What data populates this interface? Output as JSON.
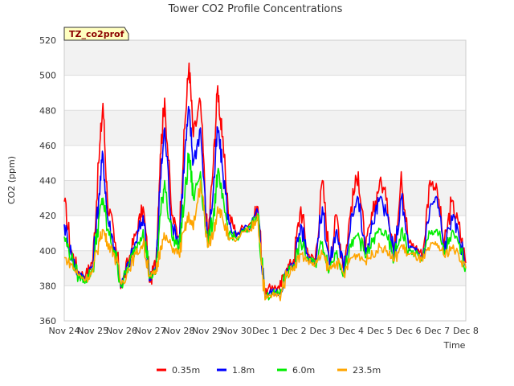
{
  "chart_data": {
    "type": "line",
    "title": "Tower CO2 Profile Concentrations",
    "xlabel": "Time",
    "ylabel": "CO2 (ppm)",
    "badge": "TZ_co2prof",
    "ylim": [
      360,
      520
    ],
    "yticks": [
      360,
      380,
      400,
      420,
      440,
      460,
      480,
      500,
      520
    ],
    "xlim": [
      0,
      14
    ],
    "xtick_labels": [
      "Nov 24",
      "Nov 25",
      "Nov 26",
      "Nov 27",
      "Nov 28",
      "Nov 29",
      "Nov 30",
      "Dec 1",
      "Dec 2",
      "Dec 3",
      "Dec 4",
      "Dec 5",
      "Dec 6",
      "Dec 7",
      "Dec 8"
    ],
    "legend_position": "bottom-center",
    "series": [
      {
        "name": "0.35m",
        "color": "#ff0000",
        "x": [
          0.0,
          0.25,
          0.5,
          0.75,
          1.0,
          1.2,
          1.35,
          1.5,
          1.75,
          2.0,
          2.25,
          2.5,
          2.75,
          3.0,
          3.2,
          3.35,
          3.5,
          3.75,
          4.0,
          4.2,
          4.35,
          4.5,
          4.75,
          5.0,
          5.2,
          5.35,
          5.5,
          5.75,
          6.0,
          6.5,
          6.75,
          7.0,
          7.25,
          7.5,
          7.75,
          8.0,
          8.25,
          8.5,
          8.75,
          9.0,
          9.25,
          9.5,
          9.75,
          10.0,
          10.25,
          10.5,
          10.75,
          11.0,
          11.25,
          11.5,
          11.75,
          12.0,
          12.25,
          12.5,
          12.75,
          13.0,
          13.25,
          13.5,
          13.75,
          14.0
        ],
        "y": [
          428,
          400,
          388,
          386,
          395,
          450,
          484,
          430,
          405,
          380,
          395,
          410,
          425,
          382,
          395,
          455,
          487,
          420,
          408,
          470,
          507,
          465,
          485,
          405,
          450,
          494,
          465,
          420,
          410,
          416,
          425,
          375,
          380,
          378,
          390,
          395,
          425,
          398,
          395,
          440,
          395,
          420,
          390,
          425,
          445,
          400,
          420,
          440,
          430,
          398,
          445,
          405,
          402,
          398,
          440,
          435,
          402,
          428,
          415,
          393
        ]
      },
      {
        "name": "1.8m",
        "color": "#0000ff",
        "x": [
          0.0,
          0.25,
          0.5,
          0.75,
          1.0,
          1.2,
          1.35,
          1.5,
          1.75,
          2.0,
          2.25,
          2.5,
          2.75,
          3.0,
          3.2,
          3.35,
          3.5,
          3.75,
          4.0,
          4.2,
          4.35,
          4.5,
          4.75,
          5.0,
          5.2,
          5.35,
          5.5,
          5.75,
          6.0,
          6.5,
          6.75,
          7.0,
          7.25,
          7.5,
          7.75,
          8.0,
          8.25,
          8.5,
          8.75,
          9.0,
          9.25,
          9.5,
          9.75,
          10.0,
          10.25,
          10.5,
          10.75,
          11.0,
          11.25,
          11.5,
          11.75,
          12.0,
          12.25,
          12.5,
          12.75,
          13.0,
          13.25,
          13.5,
          13.75,
          14.0
        ],
        "y": [
          415,
          398,
          386,
          385,
          392,
          430,
          455,
          420,
          402,
          380,
          393,
          405,
          420,
          383,
          390,
          440,
          470,
          415,
          405,
          455,
          480,
          450,
          470,
          403,
          435,
          470,
          450,
          415,
          408,
          414,
          422,
          374,
          377,
          376,
          388,
          393,
          415,
          396,
          394,
          425,
          392,
          412,
          388,
          420,
          430,
          398,
          415,
          430,
          420,
          396,
          430,
          402,
          400,
          396,
          425,
          430,
          400,
          420,
          410,
          392
        ]
      },
      {
        "name": "6.0m",
        "color": "#00ee00",
        "x": [
          0.0,
          0.25,
          0.5,
          0.75,
          1.0,
          1.2,
          1.35,
          1.5,
          1.75,
          2.0,
          2.25,
          2.5,
          2.75,
          3.0,
          3.2,
          3.35,
          3.5,
          3.75,
          4.0,
          4.2,
          4.35,
          4.5,
          4.75,
          5.0,
          5.2,
          5.35,
          5.5,
          5.75,
          6.0,
          6.5,
          6.75,
          7.0,
          7.25,
          7.5,
          7.75,
          8.0,
          8.25,
          8.5,
          8.75,
          9.0,
          9.25,
          9.5,
          9.75,
          10.0,
          10.25,
          10.5,
          10.75,
          11.0,
          11.25,
          11.5,
          11.75,
          12.0,
          12.25,
          12.5,
          12.75,
          13.0,
          13.25,
          13.5,
          13.75,
          14.0
        ],
        "y": [
          408,
          396,
          385,
          383,
          390,
          418,
          430,
          412,
          400,
          380,
          392,
          402,
          412,
          385,
          388,
          420,
          440,
          408,
          402,
          430,
          455,
          430,
          445,
          402,
          420,
          445,
          430,
          410,
          407,
          413,
          421,
          373,
          376,
          375,
          387,
          392,
          405,
          395,
          393,
          405,
          390,
          400,
          387,
          402,
          410,
          396,
          405,
          412,
          408,
          395,
          412,
          400,
          398,
          395,
          410,
          412,
          398,
          410,
          404,
          391
        ]
      },
      {
        "name": "23.5m",
        "color": "#ffa500",
        "x": [
          0.0,
          0.25,
          0.5,
          0.75,
          1.0,
          1.2,
          1.35,
          1.5,
          1.75,
          2.0,
          2.25,
          2.5,
          2.75,
          3.0,
          3.2,
          3.35,
          3.5,
          3.75,
          4.0,
          4.2,
          4.35,
          4.5,
          4.75,
          5.0,
          5.2,
          5.35,
          5.5,
          5.75,
          6.0,
          6.5,
          6.75,
          7.0,
          7.25,
          7.5,
          7.75,
          8.0,
          8.25,
          8.5,
          8.75,
          9.0,
          9.25,
          9.5,
          9.75,
          10.0,
          10.25,
          10.5,
          10.75,
          11.0,
          11.25,
          11.5,
          11.75,
          12.0,
          12.25,
          12.5,
          12.75,
          13.0,
          13.25,
          13.5,
          13.75,
          14.0
        ],
        "y": [
          396,
          392,
          386,
          384,
          388,
          405,
          412,
          405,
          398,
          381,
          390,
          398,
          404,
          386,
          387,
          402,
          408,
          402,
          398,
          412,
          420,
          412,
          440,
          402,
          410,
          425,
          420,
          406,
          406,
          412,
          420,
          372,
          375,
          374,
          386,
          391,
          398,
          394,
          392,
          398,
          389,
          394,
          386,
          396,
          398,
          394,
          398,
          402,
          400,
          394,
          403,
          398,
          397,
          394,
          402,
          404,
          397,
          402,
          398,
          390
        ]
      }
    ]
  }
}
